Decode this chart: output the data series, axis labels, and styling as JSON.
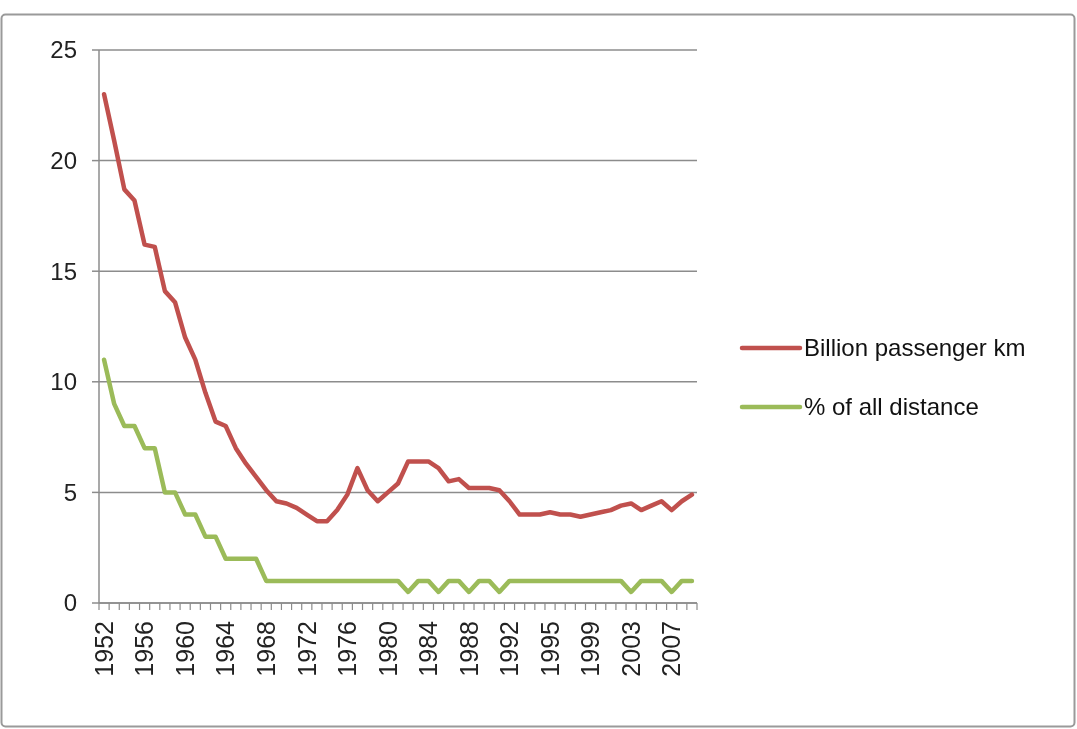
{
  "chart_data": {
    "type": "line",
    "categories": [
      "1952",
      null,
      null,
      null,
      "1956",
      null,
      null,
      null,
      "1960",
      null,
      null,
      null,
      "1964",
      null,
      null,
      null,
      "1968",
      null,
      null,
      null,
      "1972",
      null,
      null,
      null,
      "1976",
      null,
      null,
      null,
      "1980",
      null,
      null,
      null,
      "1984",
      null,
      null,
      null,
      "1988",
      null,
      null,
      null,
      "1992",
      null,
      null,
      null,
      "1995",
      null,
      null,
      null,
      "1999",
      null,
      null,
      null,
      "2003",
      null,
      null,
      null,
      "2007",
      null,
      null
    ],
    "series": [
      {
        "name": "Billion passenger km",
        "color": "#c0504d",
        "values": [
          23.0,
          20.9,
          18.7,
          18.2,
          16.2,
          16.1,
          14.1,
          13.6,
          12.0,
          11.0,
          9.5,
          8.2,
          8.0,
          7.0,
          6.3,
          5.7,
          5.1,
          4.6,
          4.5,
          4.3,
          4.0,
          3.7,
          3.7,
          4.2,
          4.9,
          6.1,
          5.1,
          4.6,
          5.0,
          5.4,
          6.4,
          6.4,
          6.4,
          6.1,
          5.5,
          5.6,
          5.2,
          5.2,
          5.2,
          5.1,
          4.6,
          4.0,
          4.0,
          4.0,
          4.1,
          4.0,
          4.0,
          3.9,
          4.0,
          4.1,
          4.2,
          4.4,
          4.5,
          4.2,
          4.4,
          4.6,
          4.2,
          4.6,
          4.9
        ]
      },
      {
        "name": "% of all distance",
        "color": "#9bbb59",
        "values": [
          11,
          9,
          8,
          8,
          7,
          7,
          5,
          5,
          4,
          4,
          3,
          3,
          2,
          2,
          2,
          2,
          1,
          1,
          1,
          1,
          1,
          1,
          1,
          1,
          1,
          1,
          1,
          1,
          1,
          1,
          0.5,
          1,
          1,
          0.5,
          1,
          1,
          0.5,
          1,
          1,
          0.5,
          1,
          1,
          1,
          1,
          1,
          1,
          1,
          1,
          1,
          1,
          1,
          1,
          0.5,
          1,
          1,
          1,
          0.5,
          1,
          1
        ]
      }
    ],
    "ylim": [
      0,
      25
    ],
    "yticks": [
      0,
      5,
      10,
      15,
      20,
      25
    ],
    "grid": "y",
    "legend": "right",
    "line_style": "solid"
  }
}
